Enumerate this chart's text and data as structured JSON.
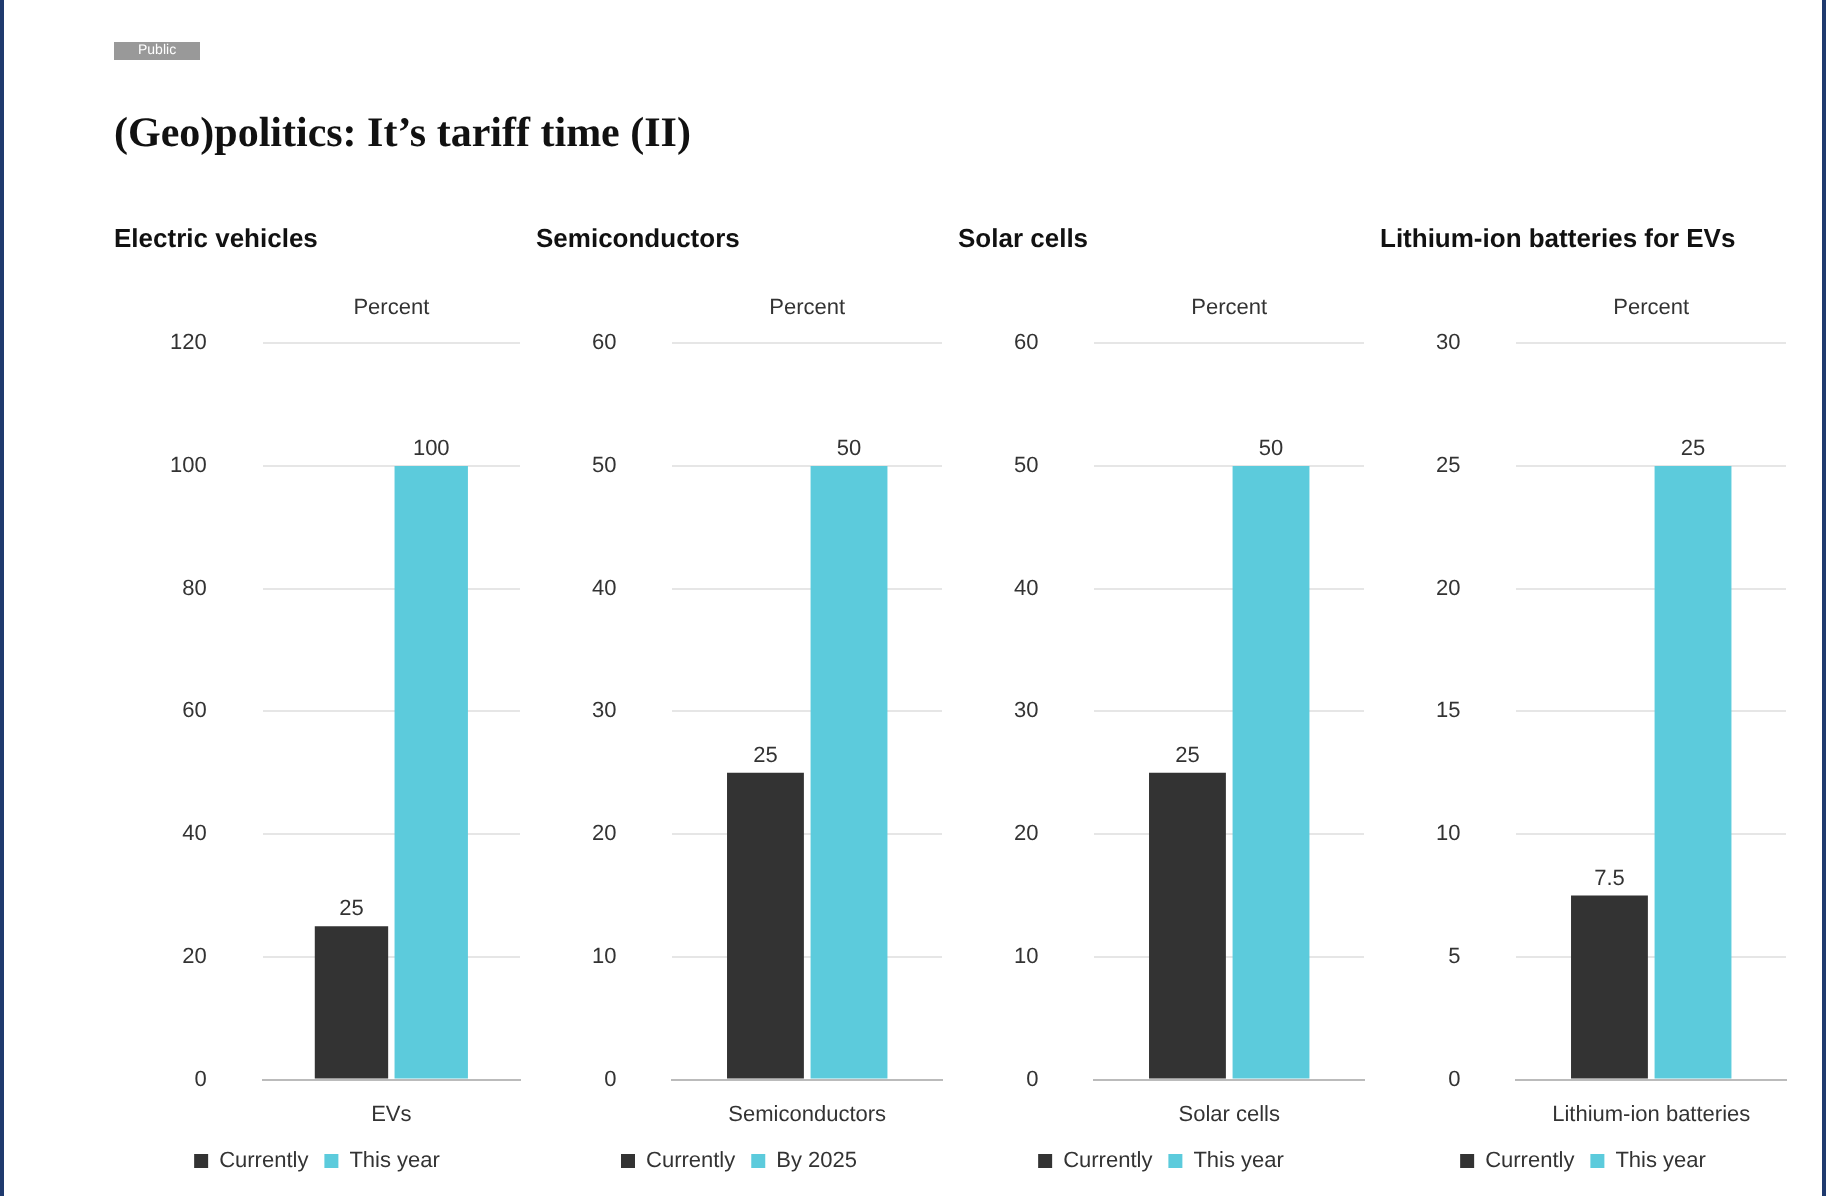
{
  "chart_data": [
    {
      "type": "other",
      "title": "(Geo)politics: It’s tariff time (II)",
      "annotations": [
        "Public"
      ]
    },
    {
      "type": "bar",
      "title": "Electric vehicles",
      "ylabel": "Percent",
      "categories": [
        "EVs"
      ],
      "series": [
        {
          "name": "Currently",
          "color": "#333333",
          "values": [
            25
          ]
        },
        {
          "name": "This year",
          "color": "#5ccbdc",
          "values": [
            100
          ]
        }
      ],
      "ylim": [
        0,
        120
      ],
      "yticks": [
        0,
        20,
        40,
        60,
        80,
        100,
        120
      ],
      "grid": "y",
      "legend": "bottom",
      "data_labels": true
    },
    {
      "type": "bar",
      "title": "Semiconductors",
      "ylabel": "Percent",
      "categories": [
        "Semiconductors"
      ],
      "series": [
        {
          "name": "Currently",
          "color": "#333333",
          "values": [
            25
          ]
        },
        {
          "name": "By 2025",
          "color": "#5ccbdc",
          "values": [
            50
          ]
        }
      ],
      "ylim": [
        0,
        60
      ],
      "yticks": [
        0,
        10,
        20,
        30,
        40,
        50,
        60
      ],
      "grid": "y",
      "legend": "bottom",
      "data_labels": true
    },
    {
      "type": "bar",
      "title": "Solar cells",
      "ylabel": "Percent",
      "categories": [
        "Solar cells"
      ],
      "series": [
        {
          "name": "Currently",
          "color": "#333333",
          "values": [
            25
          ]
        },
        {
          "name": "This year",
          "color": "#5ccbdc",
          "values": [
            50
          ]
        }
      ],
      "ylim": [
        0,
        60
      ],
      "yticks": [
        0,
        10,
        20,
        30,
        40,
        50,
        60
      ],
      "grid": "y",
      "legend": "bottom",
      "data_labels": true
    },
    {
      "type": "bar",
      "title": "Lithium-ion batteries for EVs",
      "ylabel": "Percent",
      "categories": [
        "Lithium-ion batteries"
      ],
      "series": [
        {
          "name": "Currently",
          "color": "#333333",
          "values": [
            7.5
          ]
        },
        {
          "name": "This year",
          "color": "#5ccbdc",
          "values": [
            25
          ]
        }
      ],
      "ylim": [
        0,
        30
      ],
      "yticks": [
        0,
        5,
        10,
        15,
        20,
        25,
        30
      ],
      "grid": "y",
      "legend": "bottom",
      "data_labels": true
    }
  ]
}
